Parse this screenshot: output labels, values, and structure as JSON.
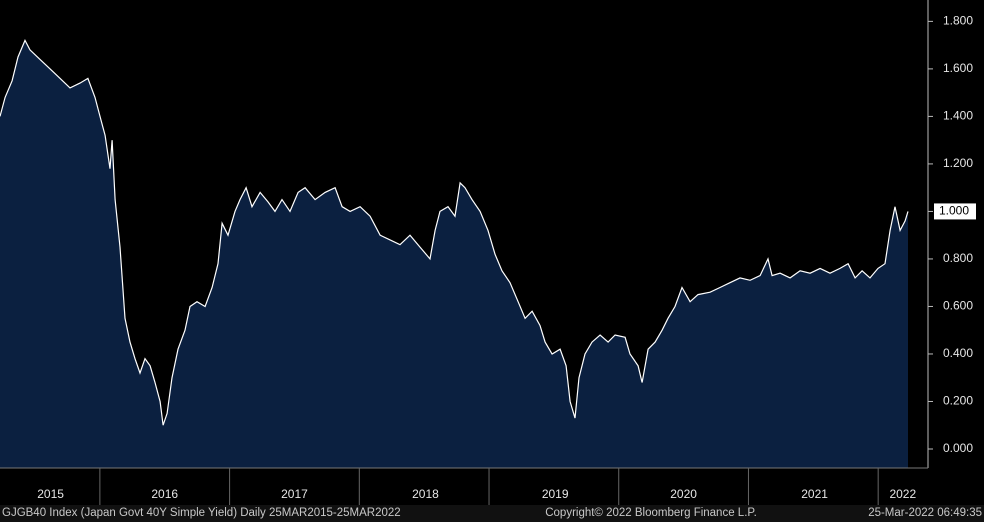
{
  "chart_data": {
    "type": "area",
    "title": "GJGB40 Index (Japan Govt 40Y Simple Yield)  Daily 25MAR2015-25MAR2022",
    "copyright": "Copyright© 2022 Bloomberg Finance L.P.",
    "timestamp": "25-Mar-2022 06:49:35",
    "last_value_label": "1.000",
    "color": "#0b2040",
    "line_color": "#ffffff",
    "x": [
      2015.23,
      2015.269,
      2015.323,
      2015.369,
      2015.423,
      2015.461,
      2015.538,
      2015.616,
      2015.693,
      2015.77,
      2015.847,
      2015.908,
      2015.962,
      2016.001,
      2016.04,
      2016.078,
      2016.094,
      2016.117,
      2016.155,
      2016.194,
      2016.232,
      2016.271,
      2016.309,
      2016.348,
      2016.387,
      2016.425,
      2016.464,
      2016.487,
      2016.518,
      2016.556,
      2016.602,
      2016.656,
      2016.695,
      2016.749,
      2016.811,
      2016.865,
      2016.911,
      2016.942,
      2016.988,
      2017.042,
      2017.08,
      2017.127,
      2017.173,
      2017.235,
      2017.296,
      2017.35,
      2017.404,
      2017.466,
      2017.528,
      2017.582,
      2017.659,
      2017.736,
      2017.813,
      2017.867,
      2017.929,
      2018.006,
      2018.083,
      2018.16,
      2018.237,
      2018.314,
      2018.391,
      2018.468,
      2018.545,
      2018.584,
      2018.622,
      2018.684,
      2018.738,
      2018.777,
      2018.815,
      2018.869,
      2018.931,
      2018.992,
      2019.046,
      2019.1,
      2019.162,
      2019.224,
      2019.278,
      2019.332,
      2019.393,
      2019.432,
      2019.486,
      2019.548,
      2019.594,
      2019.625,
      2019.663,
      2019.694,
      2019.74,
      2019.794,
      2019.856,
      2019.918,
      2019.972,
      2020.049,
      2020.087,
      2020.149,
      2020.18,
      2020.226,
      2020.28,
      2020.334,
      2020.38,
      2020.434,
      2020.488,
      2020.55,
      2020.611,
      2020.704,
      2020.781,
      2020.858,
      2020.935,
      2021.013,
      2021.09,
      2021.151,
      2021.182,
      2021.244,
      2021.321,
      2021.398,
      2021.475,
      2021.552,
      2021.629,
      2021.706,
      2021.768,
      2021.822,
      2021.876,
      2021.937,
      2021.999,
      2022.053,
      2022.092,
      2022.13,
      2022.169,
      2022.208,
      2022.23
    ],
    "values": [
      1.4,
      1.48,
      1.55,
      1.65,
      1.72,
      1.68,
      1.64,
      1.6,
      1.56,
      1.52,
      1.54,
      1.56,
      1.48,
      1.4,
      1.32,
      1.18,
      1.3,
      1.05,
      0.85,
      0.55,
      0.45,
      0.38,
      0.32,
      0.38,
      0.35,
      0.28,
      0.2,
      0.1,
      0.15,
      0.3,
      0.42,
      0.5,
      0.6,
      0.62,
      0.6,
      0.68,
      0.78,
      0.95,
      0.9,
      1.0,
      1.05,
      1.1,
      1.02,
      1.08,
      1.04,
      1.0,
      1.05,
      1.0,
      1.08,
      1.1,
      1.05,
      1.08,
      1.1,
      1.02,
      1.0,
      1.02,
      0.98,
      0.9,
      0.88,
      0.86,
      0.9,
      0.85,
      0.8,
      0.92,
      1.0,
      1.02,
      0.98,
      1.12,
      1.1,
      1.05,
      1.0,
      0.92,
      0.82,
      0.75,
      0.7,
      0.62,
      0.55,
      0.58,
      0.52,
      0.45,
      0.4,
      0.42,
      0.35,
      0.2,
      0.13,
      0.3,
      0.4,
      0.45,
      0.48,
      0.45,
      0.48,
      0.47,
      0.4,
      0.35,
      0.28,
      0.42,
      0.45,
      0.5,
      0.55,
      0.6,
      0.68,
      0.62,
      0.65,
      0.66,
      0.68,
      0.7,
      0.72,
      0.71,
      0.73,
      0.8,
      0.73,
      0.74,
      0.72,
      0.75,
      0.74,
      0.76,
      0.74,
      0.76,
      0.78,
      0.72,
      0.75,
      0.72,
      0.76,
      0.78,
      0.92,
      1.02,
      0.92,
      0.96,
      1.0
    ],
    "xlim": [
      2015.23,
      2022.23
    ],
    "xticks": [
      {
        "value": 2015.62,
        "label": "2015"
      },
      {
        "value": 2016.5,
        "label": "2016"
      },
      {
        "value": 2017.5,
        "label": "2017"
      },
      {
        "value": 2018.51,
        "label": "2018"
      },
      {
        "value": 2019.51,
        "label": "2019"
      },
      {
        "value": 2020.5,
        "label": "2020"
      },
      {
        "value": 2021.51,
        "label": "2021"
      },
      {
        "value": 2022.19,
        "label": "2022"
      }
    ],
    "ylim": [
      -0.08,
      1.89
    ],
    "yticks": [
      {
        "value": 0,
        "label": "0.000"
      },
      {
        "value": 0.2,
        "label": "0.200"
      },
      {
        "value": 0.4,
        "label": "0.400"
      },
      {
        "value": 0.6,
        "label": "0.600"
      },
      {
        "value": 0.8,
        "label": "0.800"
      },
      {
        "value": 1,
        "label": "1.000"
      },
      {
        "value": 1.2,
        "label": "1.200"
      },
      {
        "value": 1.4,
        "label": "1.400"
      },
      {
        "value": 1.6,
        "label": "1.600"
      },
      {
        "value": 1.8,
        "label": "1.800"
      }
    ],
    "y_axis_side": "right"
  }
}
